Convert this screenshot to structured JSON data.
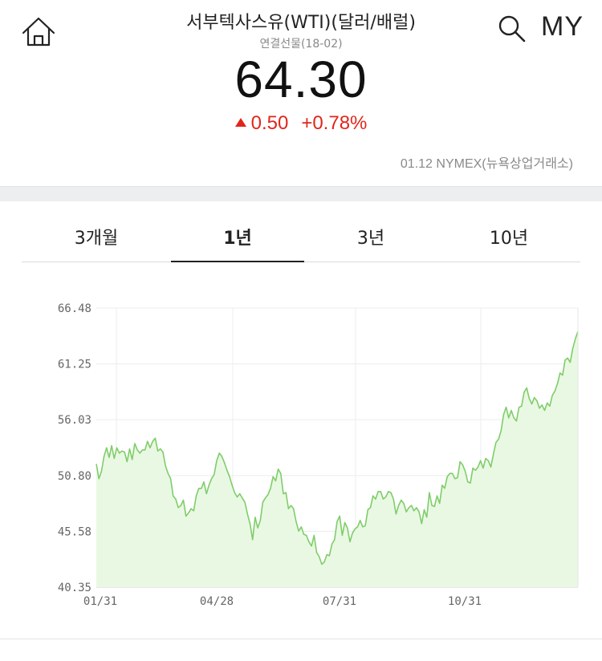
{
  "header": {
    "title": "서부텍사스유(WTI)(달러/배럴)",
    "subtitle": "연결선물(18-02)",
    "price": "64.30",
    "change_abs": "0.50",
    "change_pct": "+0.78%",
    "market_info": "01.12 NYMEX(뉴욕상업거래소)",
    "my_label": "MY",
    "colors": {
      "up": "#e0261b"
    }
  },
  "icons": {
    "home": "home-icon",
    "search": "search-icon",
    "change": "triangle-up-icon"
  },
  "tabs": [
    {
      "label": "3개월",
      "active": false
    },
    {
      "label": "1년",
      "active": true
    },
    {
      "label": "3년",
      "active": false
    },
    {
      "label": "10년",
      "active": false
    }
  ],
  "chart_data": {
    "type": "area",
    "title": "",
    "xlabel": "",
    "ylabel": "",
    "y_ticks": [
      "66.48",
      "61.25",
      "56.03",
      "50.80",
      "45.58",
      "40.35"
    ],
    "x_ticks": [
      "01/31",
      "04/28",
      "07/31",
      "10/31"
    ],
    "ylim": [
      40.35,
      66.48
    ],
    "grid": true,
    "colors": {
      "line": "#7fcd6a",
      "fill": "#e9f8e3"
    },
    "series": [
      {
        "values": [
          51.9,
          50.5,
          51.2,
          52.6,
          53.4,
          52.5,
          53.6,
          52.4,
          53.4,
          52.9,
          53.1,
          53.0,
          52.1,
          53.3,
          52.3,
          53.8,
          53.2,
          52.9,
          53.2,
          53.2,
          54.0,
          53.4,
          54.0,
          54.3,
          53.1,
          53.3,
          53.0,
          51.7,
          51.0,
          50.5,
          48.9,
          48.6,
          47.8,
          48.0,
          48.5,
          47.0,
          47.3,
          47.7,
          47.5,
          48.9,
          49.6,
          49.6,
          50.2,
          49.1,
          49.9,
          50.5,
          50.9,
          52.2,
          52.9,
          52.6,
          52.0,
          51.3,
          50.7,
          49.9,
          49.2,
          48.8,
          49.1,
          48.7,
          48.3,
          47.2,
          46.3,
          44.8,
          46.9,
          45.9,
          46.6,
          48.3,
          48.7,
          49.0,
          49.6,
          50.7,
          50.3,
          51.4,
          51.0,
          49.1,
          49.2,
          47.7,
          48.0,
          47.7,
          46.5,
          45.6,
          46.0,
          45.3,
          45.2,
          44.6,
          44.2,
          45.2,
          43.6,
          43.2,
          42.5,
          42.7,
          43.4,
          43.3,
          44.4,
          44.8,
          46.5,
          47.0,
          45.2,
          46.4,
          45.9,
          44.6,
          45.4,
          45.8,
          46.0,
          46.6,
          46.0,
          46.1,
          47.6,
          47.8,
          48.9,
          48.6,
          49.3,
          49.3,
          48.6,
          48.8,
          49.3,
          49.2,
          48.6,
          47.2,
          48.0,
          48.5,
          48.2,
          47.4,
          47.8,
          48.0,
          47.5,
          47.8,
          47.4,
          46.3,
          47.6,
          46.9,
          49.2,
          48.0,
          47.9,
          48.9,
          48.2,
          49.9,
          49.6,
          50.7,
          51.0,
          51.0,
          50.5,
          50.6,
          52.1,
          51.8,
          51.2,
          50.2,
          50.1,
          51.5,
          51.3,
          51.6,
          52.2,
          51.5,
          52.4,
          52.2,
          51.6,
          52.8,
          53.9,
          54.2,
          55.0,
          56.5,
          57.2,
          56.2,
          56.9,
          56.2,
          55.9,
          57.2,
          57.3,
          58.6,
          59.0,
          58.0,
          57.5,
          58.1,
          57.8,
          57.1,
          57.4,
          56.9,
          57.6,
          57.3,
          58.3,
          58.7,
          59.4,
          60.4,
          60.2,
          61.6,
          61.8,
          61.4,
          62.7,
          63.6,
          64.3
        ]
      }
    ]
  }
}
